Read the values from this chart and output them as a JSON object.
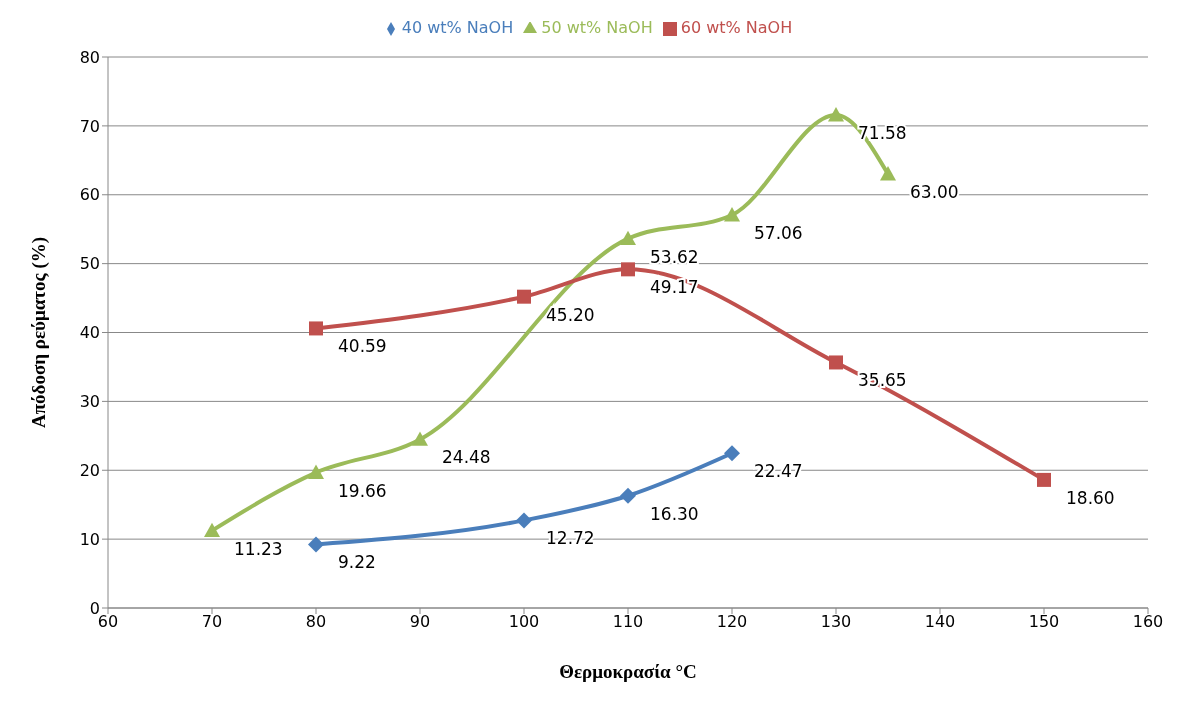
{
  "chart_data": {
    "type": "line",
    "xlabel": "Θερμοκρασία °C",
    "ylabel": "Απόδοση ρεύματος (%)",
    "xlim": [
      60,
      160
    ],
    "xticks": [
      60,
      70,
      80,
      90,
      100,
      110,
      120,
      130,
      140,
      150,
      160
    ],
    "ylim": [
      0,
      80
    ],
    "yticks": [
      0,
      10,
      20,
      30,
      40,
      50,
      60,
      70,
      80
    ],
    "grid": "y",
    "legend": "top",
    "line_style": "solid",
    "series": [
      {
        "name": "40 wt% NaOH",
        "color": "#4a7ebb",
        "marker": "diamond",
        "x": [
          80,
          100,
          110,
          120
        ],
        "values": [
          9.22,
          12.72,
          16.3,
          22.47
        ],
        "value_labels": [
          "9.22",
          "12.72",
          "16.30",
          "22.47"
        ]
      },
      {
        "name": "50 wt% NaOH",
        "color": "#9bbb59",
        "marker": "triangle",
        "x": [
          70,
          80,
          90,
          110,
          120,
          130,
          135
        ],
        "values": [
          11.23,
          19.66,
          24.48,
          53.62,
          57.06,
          71.58,
          63.0
        ],
        "value_labels": [
          "11.23",
          "19.66",
          "24.48",
          "53.62",
          "57.06",
          "71.58",
          "63.00"
        ]
      },
      {
        "name": "60 wt% NaOH",
        "color": "#c0504d",
        "marker": "square",
        "x": [
          80,
          100,
          110,
          130,
          150
        ],
        "values": [
          40.59,
          45.2,
          49.17,
          35.65,
          18.6
        ],
        "value_labels": [
          "40.59",
          "45.20",
          "49.17",
          "35.65",
          "18.60"
        ]
      }
    ]
  }
}
